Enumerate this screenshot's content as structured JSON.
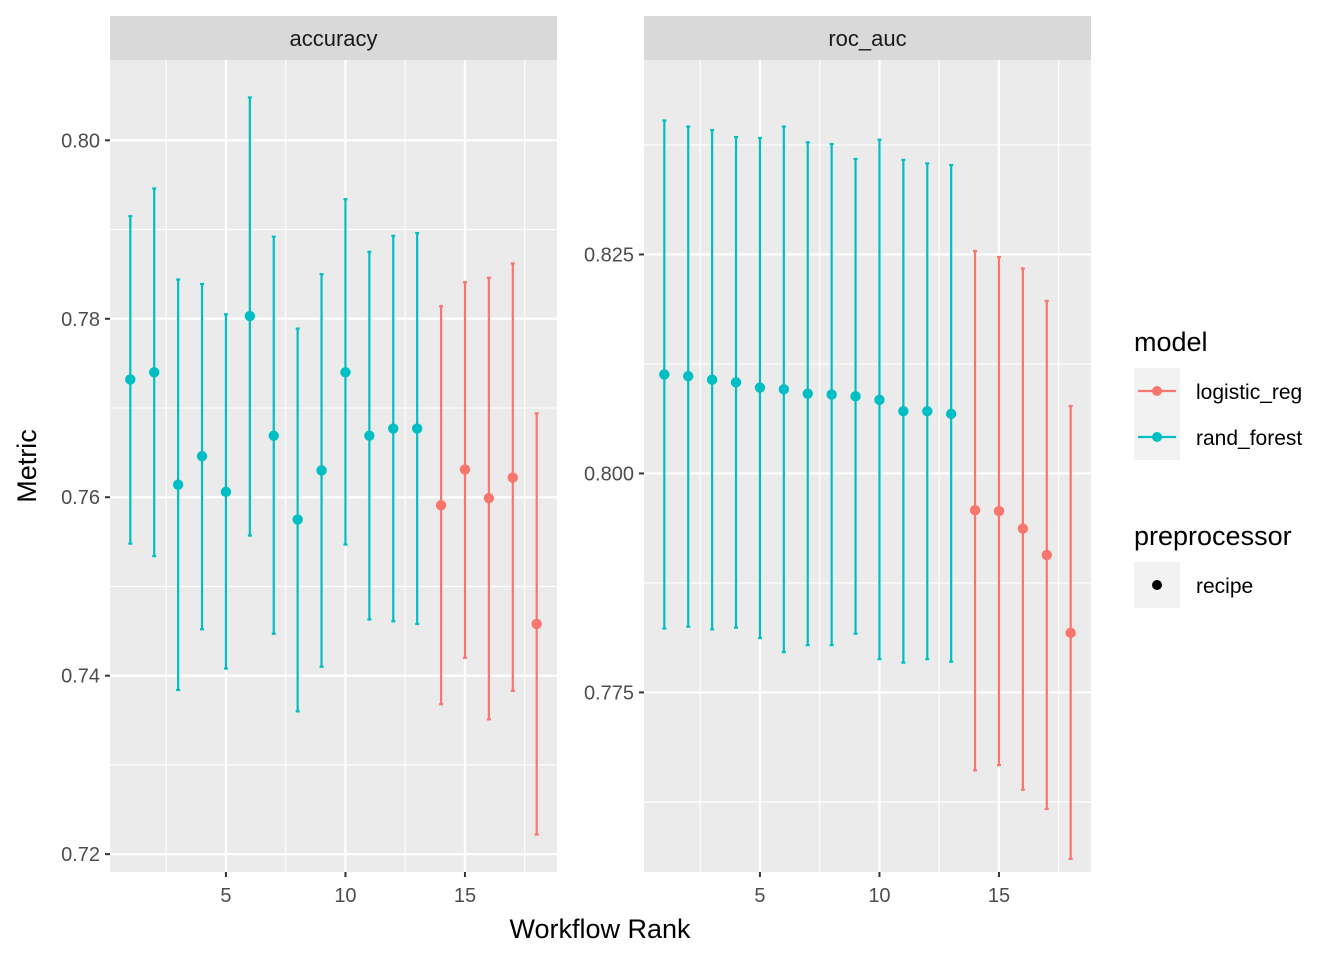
{
  "colors": {
    "logistic_reg": "#F8766D",
    "rand_forest": "#00BFC4",
    "panel_bg": "#EBEBEB",
    "strip_bg": "#D9D9D9",
    "grid": "#FFFFFF"
  },
  "chart_data": {
    "type": "scatter",
    "subtype": "point-with-errorbars, faceted",
    "xlabel": "Workflow Rank",
    "ylabel": "Metric",
    "legend_position": "right",
    "grid": true,
    "legends": {
      "model": {
        "title": "model",
        "entries": [
          {
            "label": "logistic_reg",
            "color_key": "logistic_reg"
          },
          {
            "label": "rand_forest",
            "color_key": "rand_forest"
          }
        ]
      },
      "preprocessor": {
        "title": "preprocessor",
        "entries": [
          {
            "label": "recipe",
            "shape": "circle"
          }
        ]
      }
    },
    "panels": [
      {
        "title": "accuracy",
        "xlim": [
          0.15,
          18.85
        ],
        "ylim": [
          0.718,
          0.809
        ],
        "xticks": [
          5,
          10,
          15
        ],
        "xtick_labels": [
          "5",
          "10",
          "15"
        ],
        "yticks": [
          0.72,
          0.74,
          0.76,
          0.78,
          0.8
        ],
        "ytick_labels": [
          "0.72",
          "0.74",
          "0.76",
          "0.78",
          "0.80"
        ],
        "points": [
          {
            "rank": 1,
            "model": "rand_forest",
            "mean": 0.7732,
            "lower": 0.7548,
            "upper": 0.7915
          },
          {
            "rank": 2,
            "model": "rand_forest",
            "mean": 0.774,
            "lower": 0.7534,
            "upper": 0.7946
          },
          {
            "rank": 3,
            "model": "rand_forest",
            "mean": 0.7614,
            "lower": 0.7384,
            "upper": 0.7844
          },
          {
            "rank": 4,
            "model": "rand_forest",
            "mean": 0.7646,
            "lower": 0.7452,
            "upper": 0.7839
          },
          {
            "rank": 5,
            "model": "rand_forest",
            "mean": 0.7606,
            "lower": 0.7408,
            "upper": 0.7805
          },
          {
            "rank": 6,
            "model": "rand_forest",
            "mean": 0.7803,
            "lower": 0.7557,
            "upper": 0.8048
          },
          {
            "rank": 7,
            "model": "rand_forest",
            "mean": 0.7669,
            "lower": 0.7447,
            "upper": 0.7892
          },
          {
            "rank": 8,
            "model": "rand_forest",
            "mean": 0.7575,
            "lower": 0.736,
            "upper": 0.7789
          },
          {
            "rank": 9,
            "model": "rand_forest",
            "mean": 0.763,
            "lower": 0.741,
            "upper": 0.785
          },
          {
            "rank": 10,
            "model": "rand_forest",
            "mean": 0.774,
            "lower": 0.7547,
            "upper": 0.7934
          },
          {
            "rank": 11,
            "model": "rand_forest",
            "mean": 0.7669,
            "lower": 0.7463,
            "upper": 0.7875
          },
          {
            "rank": 12,
            "model": "rand_forest",
            "mean": 0.7677,
            "lower": 0.7461,
            "upper": 0.7893
          },
          {
            "rank": 13,
            "model": "rand_forest",
            "mean": 0.7677,
            "lower": 0.7458,
            "upper": 0.7896
          },
          {
            "rank": 14,
            "model": "logistic_reg",
            "mean": 0.7591,
            "lower": 0.7368,
            "upper": 0.7814
          },
          {
            "rank": 15,
            "model": "logistic_reg",
            "mean": 0.7631,
            "lower": 0.742,
            "upper": 0.7841
          },
          {
            "rank": 16,
            "model": "logistic_reg",
            "mean": 0.7599,
            "lower": 0.7351,
            "upper": 0.7846
          },
          {
            "rank": 17,
            "model": "logistic_reg",
            "mean": 0.7622,
            "lower": 0.7383,
            "upper": 0.7862
          },
          {
            "rank": 18,
            "model": "logistic_reg",
            "mean": 0.7458,
            "lower": 0.7222,
            "upper": 0.7694
          }
        ]
      },
      {
        "title": "roc_auc",
        "xlim": [
          0.15,
          18.85
        ],
        "ylim": [
          0.7545,
          0.8472
        ],
        "xticks": [
          5,
          10,
          15
        ],
        "xtick_labels": [
          "5",
          "10",
          "15"
        ],
        "yticks": [
          0.775,
          0.8,
          0.825
        ],
        "ytick_labels": [
          "0.775",
          "0.800",
          "0.825"
        ],
        "points": [
          {
            "rank": 1,
            "model": "rand_forest",
            "mean": 0.8113,
            "lower": 0.7823,
            "upper": 0.8403
          },
          {
            "rank": 2,
            "model": "rand_forest",
            "mean": 0.8111,
            "lower": 0.7825,
            "upper": 0.8396
          },
          {
            "rank": 3,
            "model": "rand_forest",
            "mean": 0.8107,
            "lower": 0.7822,
            "upper": 0.8392
          },
          {
            "rank": 4,
            "model": "rand_forest",
            "mean": 0.8104,
            "lower": 0.7824,
            "upper": 0.8384
          },
          {
            "rank": 5,
            "model": "rand_forest",
            "mean": 0.8098,
            "lower": 0.7812,
            "upper": 0.8383
          },
          {
            "rank": 6,
            "model": "rand_forest",
            "mean": 0.8096,
            "lower": 0.7796,
            "upper": 0.8396
          },
          {
            "rank": 7,
            "model": "rand_forest",
            "mean": 0.8091,
            "lower": 0.7804,
            "upper": 0.8378
          },
          {
            "rank": 8,
            "model": "rand_forest",
            "mean": 0.809,
            "lower": 0.7804,
            "upper": 0.8376
          },
          {
            "rank": 9,
            "model": "rand_forest",
            "mean": 0.8088,
            "lower": 0.7817,
            "upper": 0.8359
          },
          {
            "rank": 10,
            "model": "rand_forest",
            "mean": 0.8084,
            "lower": 0.7788,
            "upper": 0.8381
          },
          {
            "rank": 11,
            "model": "rand_forest",
            "mean": 0.8071,
            "lower": 0.7784,
            "upper": 0.8358
          },
          {
            "rank": 12,
            "model": "rand_forest",
            "mean": 0.8071,
            "lower": 0.7788,
            "upper": 0.8354
          },
          {
            "rank": 13,
            "model": "rand_forest",
            "mean": 0.8068,
            "lower": 0.7785,
            "upper": 0.8352
          },
          {
            "rank": 14,
            "model": "logistic_reg",
            "mean": 0.7958,
            "lower": 0.7661,
            "upper": 0.8254
          },
          {
            "rank": 15,
            "model": "logistic_reg",
            "mean": 0.7957,
            "lower": 0.7667,
            "upper": 0.8247
          },
          {
            "rank": 16,
            "model": "logistic_reg",
            "mean": 0.7937,
            "lower": 0.7639,
            "upper": 0.8234
          },
          {
            "rank": 17,
            "model": "logistic_reg",
            "mean": 0.7907,
            "lower": 0.7617,
            "upper": 0.8197
          },
          {
            "rank": 18,
            "model": "logistic_reg",
            "mean": 0.7818,
            "lower": 0.756,
            "upper": 0.8077
          }
        ]
      }
    ]
  }
}
